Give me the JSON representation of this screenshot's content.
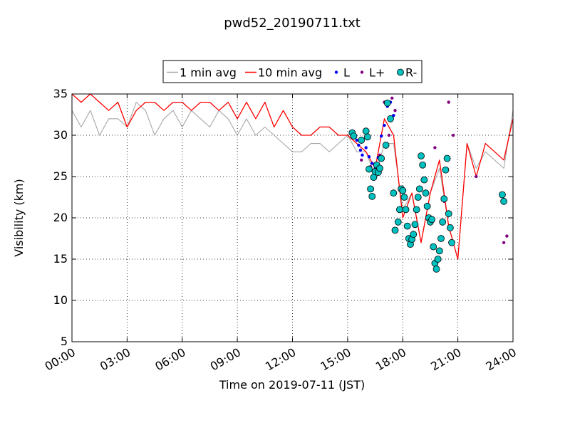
{
  "chart_data": {
    "type": "line",
    "title": "pwd52_20190711.txt",
    "xlabel": "Time on 2019-07-11 (JST)",
    "ylabel": "Visibility (km)",
    "xlim": [
      "00:00",
      "24:00"
    ],
    "ylim": [
      5,
      35
    ],
    "x_ticks": [
      "00:00",
      "03:00",
      "06:00",
      "09:00",
      "12:00",
      "15:00",
      "18:00",
      "21:00",
      "24:00"
    ],
    "y_ticks": [
      5,
      10,
      15,
      20,
      25,
      30,
      35
    ],
    "grid": true,
    "legend_position": "top-center",
    "legend": [
      {
        "label": "1 min avg",
        "marker": "line",
        "color": "#a8a8a8"
      },
      {
        "label": "10 min avg",
        "marker": "line",
        "color": "#ff0000"
      },
      {
        "label": "L",
        "marker": "dot",
        "color": "#0000ff"
      },
      {
        "label": "L+",
        "marker": "dot",
        "color": "#800080"
      },
      {
        "label": "R-",
        "marker": "circle",
        "color": "#00c0c0"
      }
    ],
    "series": [
      {
        "name": "1 min avg",
        "color": "#a8a8a8",
        "x": [
          "00:00",
          "00:30",
          "01:00",
          "01:30",
          "02:00",
          "02:30",
          "03:00",
          "03:30",
          "04:00",
          "04:30",
          "05:00",
          "05:30",
          "06:00",
          "06:30",
          "07:00",
          "07:30",
          "08:00",
          "08:30",
          "09:00",
          "09:30",
          "10:00",
          "10:30",
          "11:00",
          "11:30",
          "12:00",
          "12:30",
          "13:00",
          "13:30",
          "14:00",
          "14:30",
          "15:00",
          "15:30",
          "16:00",
          "16:30",
          "17:00",
          "17:30",
          "18:00",
          "18:30",
          "19:00",
          "19:30",
          "20:00",
          "20:30",
          "21:00",
          "21:30",
          "22:00",
          "22:30",
          "23:00",
          "23:30",
          "24:00"
        ],
        "y": [
          33,
          31,
          33,
          30,
          32,
          32,
          31,
          34,
          33,
          30,
          32,
          33,
          31,
          33,
          32,
          31,
          33,
          32,
          30,
          32,
          30,
          31,
          30,
          29,
          28,
          28,
          29,
          29,
          28,
          29,
          30,
          28,
          28,
          25,
          29,
          29,
          21,
          23,
          17,
          23,
          26,
          19,
          15,
          29,
          26,
          28,
          27,
          26,
          33
        ]
      },
      {
        "name": "10 min avg",
        "color": "#ff0000",
        "x": [
          "00:00",
          "00:30",
          "01:00",
          "01:30",
          "02:00",
          "02:30",
          "03:00",
          "03:30",
          "04:00",
          "04:30",
          "05:00",
          "05:30",
          "06:00",
          "06:30",
          "07:00",
          "07:30",
          "08:00",
          "08:30",
          "09:00",
          "09:30",
          "10:00",
          "10:30",
          "11:00",
          "11:30",
          "12:00",
          "12:30",
          "13:00",
          "13:30",
          "14:00",
          "14:30",
          "15:00",
          "15:30",
          "16:00",
          "16:30",
          "17:00",
          "17:30",
          "18:00",
          "18:30",
          "19:00",
          "19:30",
          "20:00",
          "20:30",
          "21:00",
          "21:30",
          "22:00",
          "22:30",
          "23:00",
          "23:30",
          "24:00"
        ],
        "y": [
          35,
          34,
          35,
          34,
          33,
          34,
          31,
          33,
          34,
          34,
          33,
          34,
          34,
          33,
          34,
          34,
          33,
          34,
          32,
          34,
          32,
          34,
          31,
          33,
          31,
          30,
          30,
          31,
          31,
          30,
          30,
          29,
          28,
          26,
          32,
          30,
          20,
          23,
          17,
          23,
          27,
          19,
          15,
          29,
          25,
          29,
          28,
          27,
          32
        ]
      },
      {
        "name": "L",
        "color": "#0000ff",
        "x": [
          "15:30",
          "15:36",
          "15:42",
          "15:48",
          "16:00",
          "16:10",
          "16:20",
          "16:30",
          "16:40",
          "16:50",
          "17:00",
          "17:10",
          "17:20",
          "17:30"
        ],
        "y": [
          29.4,
          28.8,
          28.2,
          27.6,
          28.5,
          27.4,
          26.6,
          26.0,
          27.3,
          29.9,
          31.2,
          33.5,
          34.0,
          32.4
        ]
      },
      {
        "name": "L+",
        "color": "#800080",
        "x": [
          "15:45",
          "16:15",
          "16:45",
          "17:00",
          "17:15",
          "17:25",
          "17:35",
          "19:45",
          "20:15",
          "20:30",
          "20:45",
          "22:00",
          "23:30",
          "23:40"
        ],
        "y": [
          27.0,
          26.2,
          27.6,
          34.0,
          30.0,
          34.5,
          33.0,
          28.5,
          22.0,
          34.0,
          30.0,
          25.0,
          17.0,
          17.8
        ]
      },
      {
        "name": "R-",
        "color": "#00c0c0",
        "x": [
          "15:15",
          "15:20",
          "15:45",
          "16:00",
          "16:05",
          "16:10",
          "16:15",
          "16:20",
          "16:25",
          "16:30",
          "16:35",
          "16:40",
          "16:45",
          "16:50",
          "17:05",
          "17:10",
          "17:20",
          "17:30",
          "17:35",
          "17:45",
          "17:50",
          "17:55",
          "18:00",
          "18:05",
          "18:10",
          "18:15",
          "18:20",
          "18:25",
          "18:30",
          "18:35",
          "18:40",
          "18:45",
          "18:50",
          "18:55",
          "19:00",
          "19:05",
          "19:10",
          "19:15",
          "19:20",
          "19:25",
          "19:30",
          "19:35",
          "19:40",
          "19:45",
          "19:50",
          "19:55",
          "20:00",
          "20:05",
          "20:10",
          "20:15",
          "20:20",
          "20:25",
          "20:30",
          "20:35",
          "20:40",
          "23:25",
          "23:30"
        ],
        "y": [
          30.3,
          29.9,
          29.4,
          30.5,
          29.8,
          25.9,
          23.5,
          22.6,
          24.9,
          25.6,
          26.4,
          25.5,
          26.0,
          27.2,
          28.8,
          33.9,
          32.0,
          23.0,
          18.5,
          19.5,
          21.0,
          23.5,
          23.3,
          22.5,
          21.0,
          19.0,
          17.5,
          16.8,
          17.4,
          18.0,
          19.2,
          21.0,
          22.5,
          23.5,
          27.5,
          26.4,
          24.6,
          23.0,
          21.4,
          20.0,
          19.5,
          19.8,
          16.5,
          14.5,
          13.8,
          15.0,
          16.0,
          17.5,
          19.5,
          22.3,
          25.8,
          27.2,
          20.5,
          18.8,
          17.0,
          22.8,
          22.0
        ]
      }
    ]
  }
}
